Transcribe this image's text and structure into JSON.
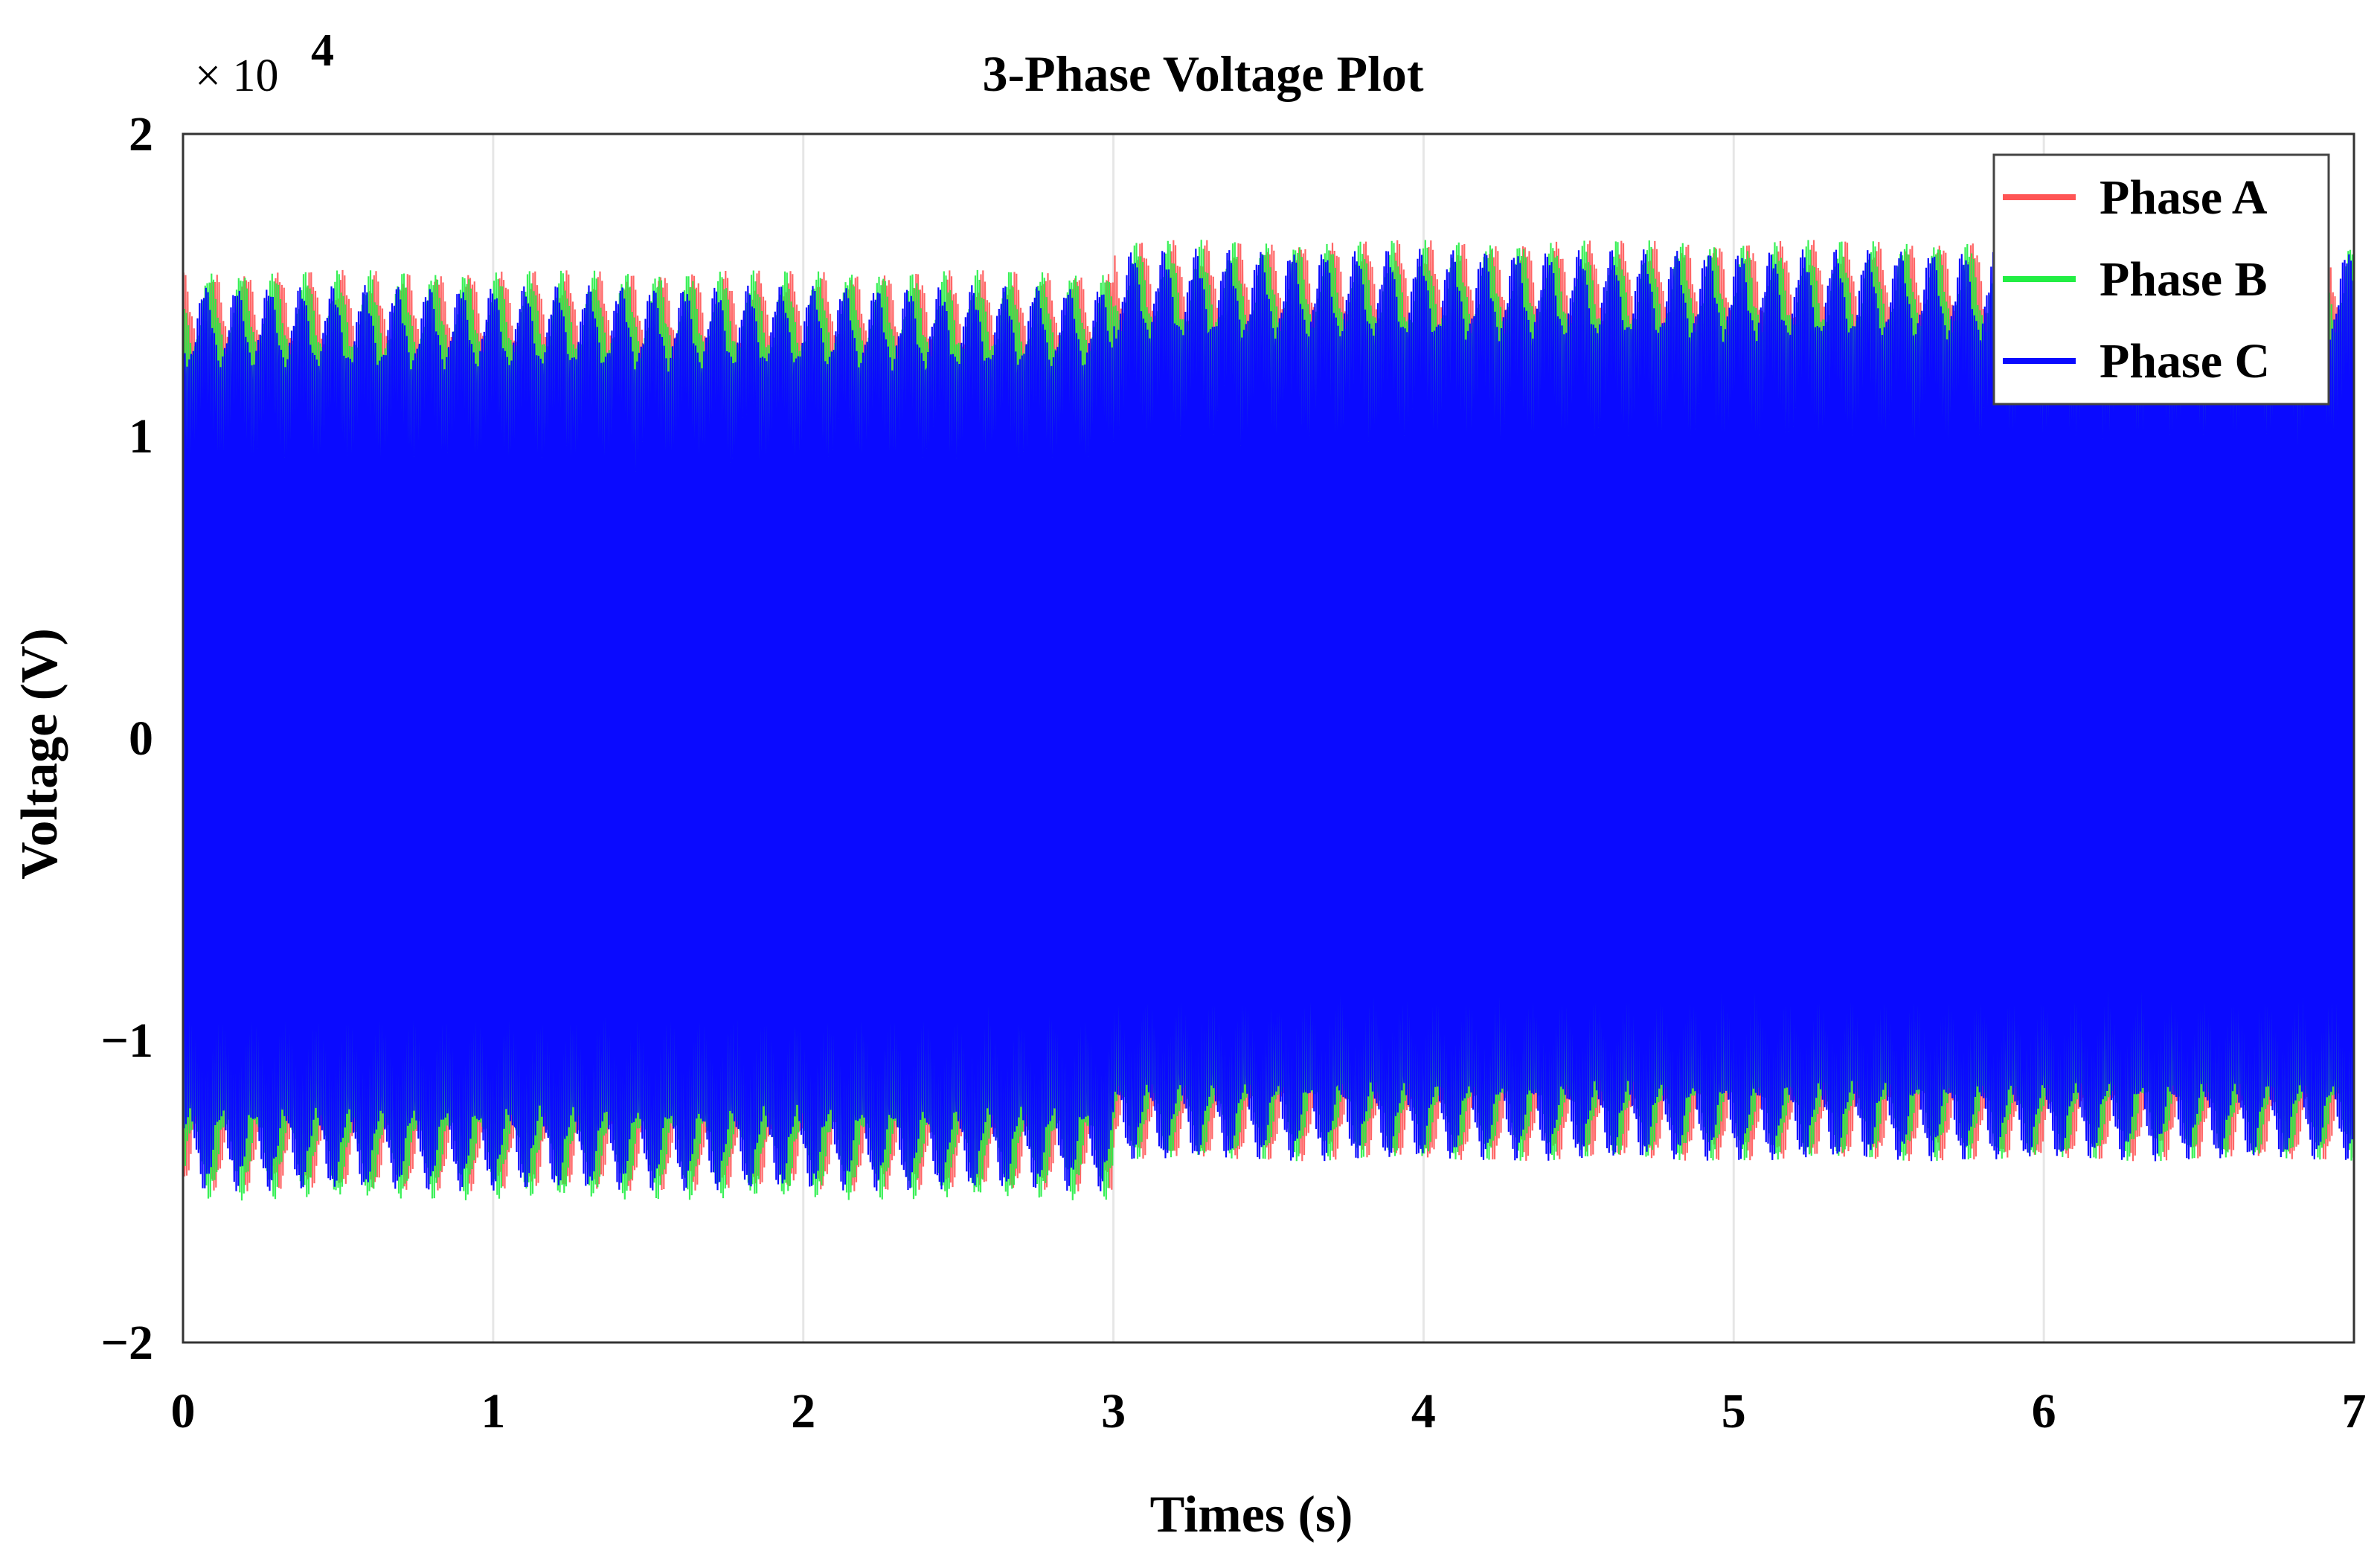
{
  "chart_data": {
    "type": "line",
    "title": "3-Phase Voltage Plot",
    "xlabel": "Times (s)",
    "ylabel": "Voltage (V)",
    "y_multiplier_label": "× 10",
    "y_multiplier_exponent": "4",
    "xlim": [
      0,
      7
    ],
    "ylim": [
      -20000,
      20000
    ],
    "x_ticks": [
      0,
      1,
      2,
      3,
      4,
      5,
      6,
      7
    ],
    "x_tick_labels": [
      "0",
      "1",
      "2",
      "3",
      "4",
      "5",
      "6",
      "7"
    ],
    "y_ticks": [
      -20000,
      -10000,
      0,
      10000,
      20000
    ],
    "y_tick_labels": [
      "−2",
      "−1",
      "0",
      "1",
      "2"
    ],
    "grid": true,
    "legend_position": "top-right",
    "series": [
      {
        "name": "Phase A",
        "color": "#ff5555",
        "envelope": [
          {
            "x_from": 0,
            "x_to": 3,
            "peak_max": 15500,
            "peak_min": -15000
          },
          {
            "x_from": 3,
            "x_to": 7,
            "peak_max": 16500,
            "peak_min": -14000
          }
        ]
      },
      {
        "name": "Phase B",
        "color": "#22ee44",
        "envelope": [
          {
            "x_from": 0,
            "x_to": 3,
            "peak_max": 15500,
            "peak_min": -15300
          },
          {
            "x_from": 3,
            "x_to": 7,
            "peak_max": 16500,
            "peak_min": -14000
          }
        ]
      },
      {
        "name": "Phase C",
        "color": "#0a0aff",
        "envelope": [
          {
            "x_from": 0,
            "x_to": 3,
            "peak_max": 15000,
            "peak_min": -15000
          },
          {
            "x_from": 3,
            "x_to": 7,
            "peak_max": 16200,
            "peak_min": -14000
          }
        ]
      }
    ]
  }
}
